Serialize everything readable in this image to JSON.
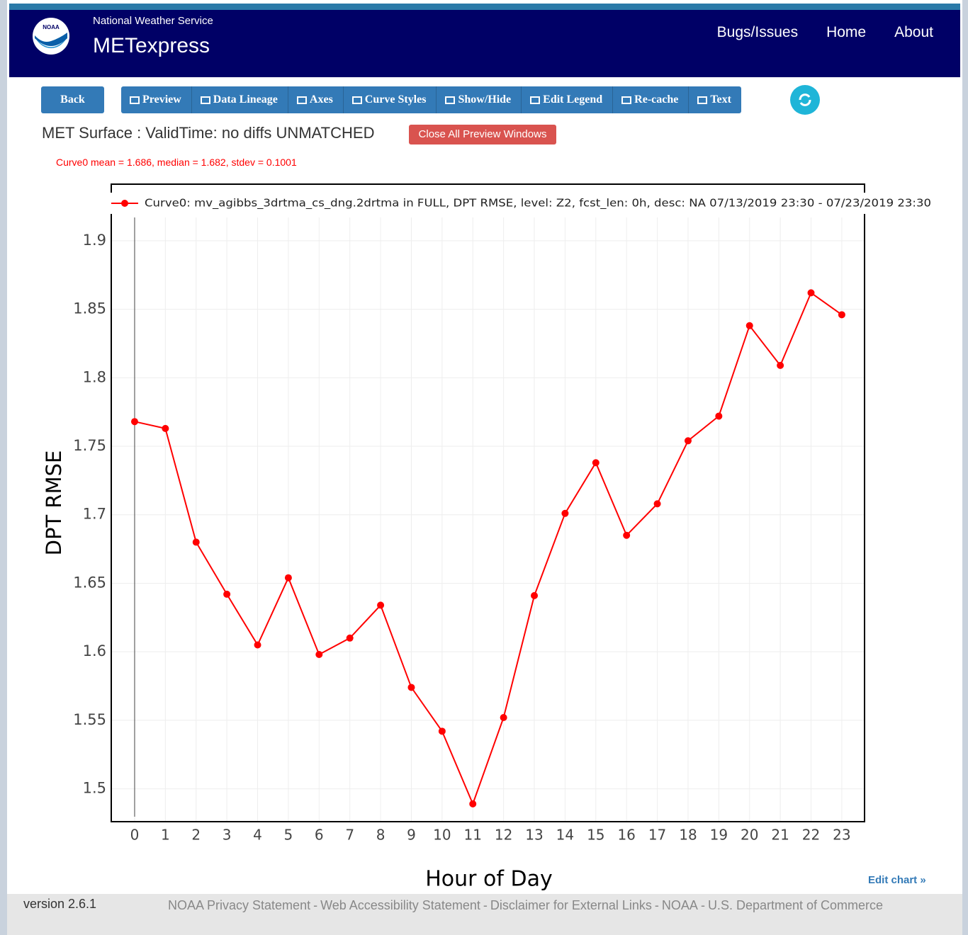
{
  "header": {
    "logo": "NOAA",
    "org": "National Weather Service",
    "app": "METexpress",
    "nav": [
      "Bugs/Issues",
      "Home",
      "About"
    ]
  },
  "toolbar": {
    "back": "Back",
    "buttons": [
      "Preview",
      "Data Lineage",
      "Axes",
      "Curve Styles",
      "Show/Hide",
      "Edit Legend",
      "Re-cache",
      "Text"
    ]
  },
  "plot_title": "MET Surface : ValidTime: no diffs UNMATCHED",
  "close_button": "Close All Preview Windows",
  "stats": "Curve0 mean = 1.686, median = 1.682, stdev = 0.1001",
  "chart_data": {
    "type": "line",
    "xlabel": "Hour of Day",
    "ylabel": "DPT RMSE",
    "x": [
      0,
      1,
      2,
      3,
      4,
      5,
      6,
      7,
      8,
      9,
      10,
      11,
      12,
      13,
      14,
      15,
      16,
      17,
      18,
      19,
      20,
      21,
      22,
      23
    ],
    "series": [
      {
        "name": "Curve0: mv_agibbs_3drtma_cs_dng.2drtma in FULL, DPT RMSE, level: Z2, fcst_len: 0h, desc: NA 07/13/2019 23:30 - 07/23/2019 23:30",
        "color": "#ff0000",
        "values": [
          1.768,
          1.763,
          1.68,
          1.642,
          1.605,
          1.654,
          1.598,
          1.61,
          1.634,
          1.574,
          1.542,
          1.489,
          1.552,
          1.641,
          1.701,
          1.738,
          1.685,
          1.708,
          1.754,
          1.772,
          1.838,
          1.809,
          1.862,
          1.846
        ]
      }
    ],
    "xlim": [
      -0.76,
      23.74
    ],
    "ylim": [
      1.476,
      1.917
    ],
    "xticks": [
      0,
      1,
      2,
      3,
      4,
      5,
      6,
      7,
      8,
      9,
      10,
      11,
      12,
      13,
      14,
      15,
      16,
      17,
      18,
      19,
      20,
      21,
      22,
      23
    ],
    "yticks": [
      1.5,
      1.55,
      1.6,
      1.65,
      1.7,
      1.75,
      1.8,
      1.85,
      1.9
    ],
    "grid": true
  },
  "edit_chart": "Edit chart »",
  "footer": {
    "version": "version 2.6.1",
    "separator": "-",
    "links": [
      "NOAA Privacy Statement",
      "Web Accessibility Statement",
      "Disclaimer for External Links",
      "NOAA",
      "U.S. Department of Commerce"
    ]
  }
}
